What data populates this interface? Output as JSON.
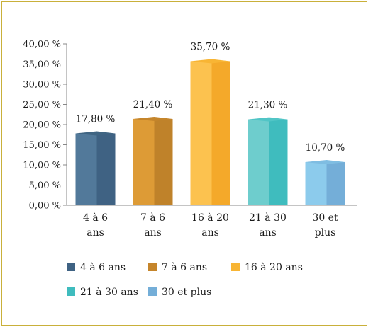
{
  "chart_data": {
    "type": "bar",
    "categories": [
      [
        "4 à 6",
        "ans"
      ],
      [
        "7 à 6",
        "ans"
      ],
      [
        "16 à 20",
        "ans"
      ],
      [
        "21 à 30",
        "ans"
      ],
      [
        "30 et",
        "plus"
      ]
    ],
    "values": [
      17.8,
      21.4,
      35.7,
      21.3,
      10.7
    ],
    "value_labels": [
      "17,80 %",
      "21,40 %",
      "35,70 %",
      "21,30 %",
      "10,70 %"
    ],
    "yticks": [
      "0,00 %",
      "5,00 %",
      "10,00 %",
      "15,00 %",
      "20,00 %",
      "25,00 %",
      "30,00 %",
      "35,00 %",
      "40,00 %"
    ],
    "ylim": [
      0,
      40
    ],
    "colors": {
      "front": [
        "#52799a",
        "#dd9b36",
        "#fcc24f",
        "#6ecdcd",
        "#8ccbec"
      ],
      "side": [
        "#3f6283",
        "#bf822a",
        "#f4a92a",
        "#3fbcbe",
        "#74aed8"
      ],
      "top": [
        "#406583",
        "#c5852b",
        "#f8b534",
        "#51c5c6",
        "#7fbde2"
      ]
    },
    "legend": {
      "position": "bottom",
      "entries": [
        {
          "label": "4 à 6 ans",
          "color": "#3f6283"
        },
        {
          "label": "7 à 6 ans",
          "color": "#c5852b"
        },
        {
          "label": "16 à 20 ans",
          "color": "#f8b534"
        },
        {
          "label": "21 à 30 ans",
          "color": "#3fbcbe"
        },
        {
          "label": "30 et plus",
          "color": "#74aed8"
        }
      ]
    },
    "grid": false
  }
}
